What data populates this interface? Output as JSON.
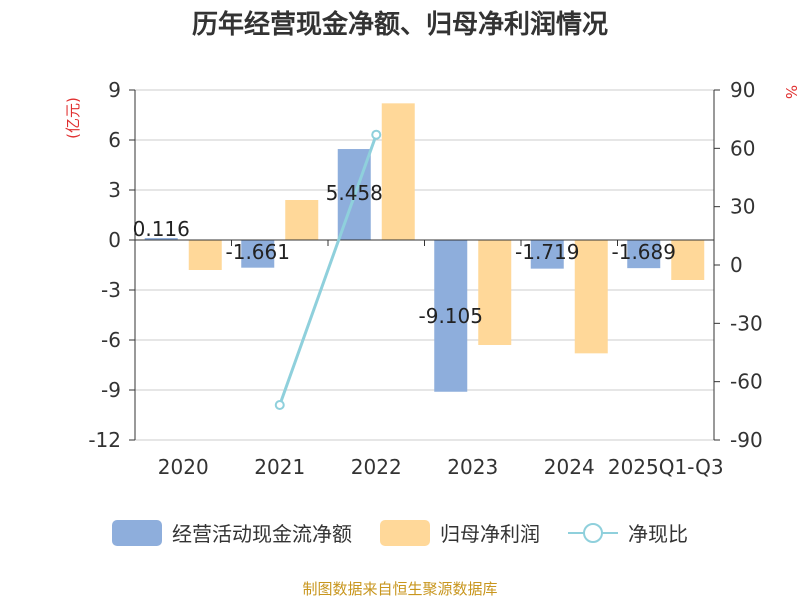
{
  "chart_data": {
    "type": "bar",
    "title": "历年经营现金净额、归母净利润情况",
    "categories": [
      "2020",
      "2021",
      "2022",
      "2023",
      "2024",
      "2025Q1-Q3"
    ],
    "series": [
      {
        "name": "经营活动现金流净额",
        "type": "bar",
        "axis": "left",
        "color": "#8eaedc",
        "values": [
          0.116,
          -1.661,
          5.458,
          -9.105,
          -1.719,
          -1.689
        ],
        "labels": [
          "0.116",
          "-1.661",
          "5.458",
          "-9.105",
          "-1.719",
          "-1.689"
        ]
      },
      {
        "name": "归母净利润",
        "type": "bar",
        "axis": "left",
        "color": "#ffd899",
        "values": [
          -1.8,
          2.4,
          8.2,
          -6.3,
          -6.8,
          -2.4
        ]
      },
      {
        "name": "净现比",
        "type": "line",
        "axis": "right",
        "color": "#8fd0dc",
        "values": [
          null,
          -72,
          67,
          null,
          null,
          null
        ]
      }
    ],
    "ylabel": "(亿元)",
    "y2label": "%",
    "ylim": [
      -12,
      9
    ],
    "y_ticks": [
      "9",
      "6",
      "3",
      "0",
      "-3",
      "-6",
      "-9",
      "-12"
    ],
    "y2lim": [
      -90,
      90
    ],
    "y2_ticks": [
      "90",
      "60",
      "30",
      "0",
      "-30",
      "-60",
      "-90"
    ],
    "grid": true,
    "legend_position": "bottom",
    "source": "制图数据来自恒生聚源数据库"
  }
}
